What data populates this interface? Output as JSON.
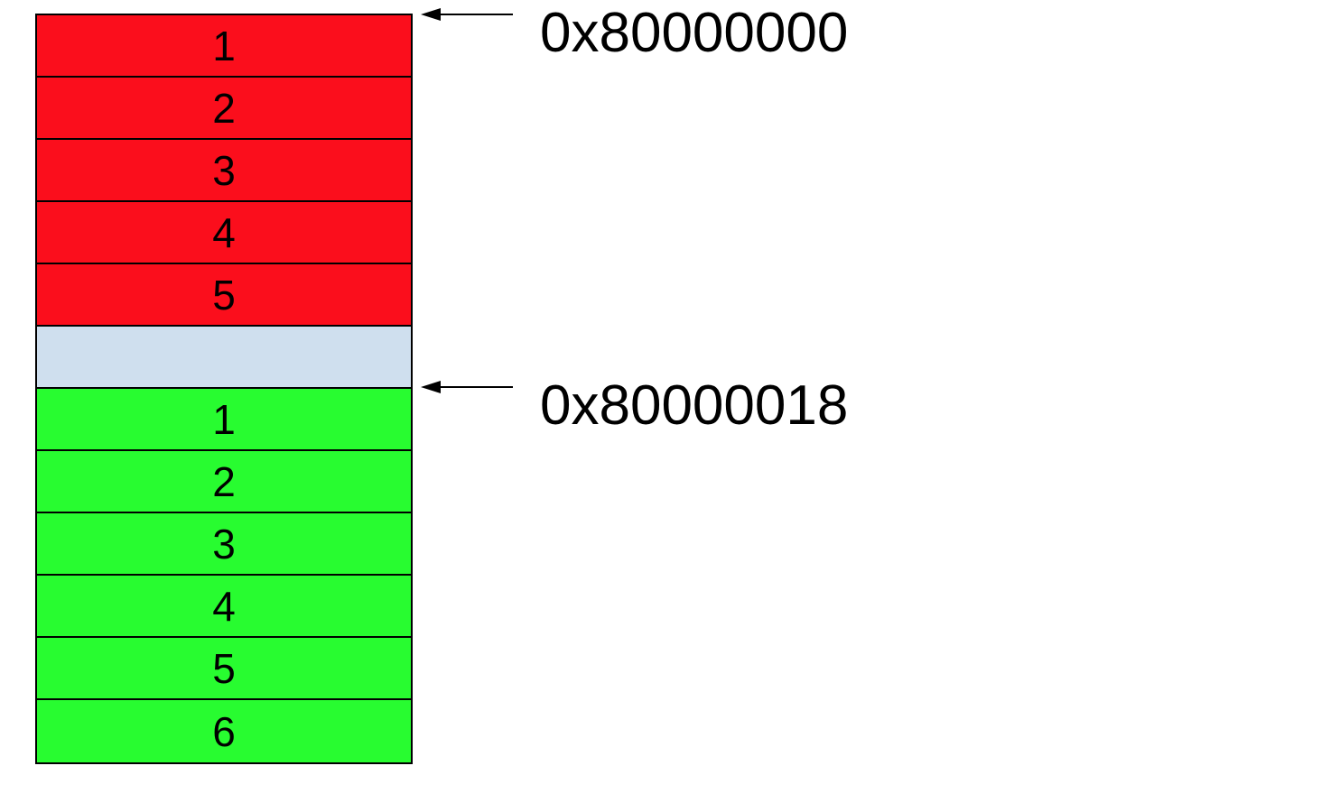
{
  "colors": {
    "block_a": "#fb0e1c",
    "padding": "#cfdfee",
    "block_b": "#28fc30",
    "outline": "#000000"
  },
  "cells": [
    {
      "label": "1",
      "kind": "block_a"
    },
    {
      "label": "2",
      "kind": "block_a"
    },
    {
      "label": "3",
      "kind": "block_a"
    },
    {
      "label": "4",
      "kind": "block_a"
    },
    {
      "label": "5",
      "kind": "block_a"
    },
    {
      "label": "",
      "kind": "padding"
    },
    {
      "label": "1",
      "kind": "block_b"
    },
    {
      "label": "2",
      "kind": "block_b"
    },
    {
      "label": "3",
      "kind": "block_b"
    },
    {
      "label": "4",
      "kind": "block_b"
    },
    {
      "label": "5",
      "kind": "block_b"
    },
    {
      "label": "6",
      "kind": "block_b"
    }
  ],
  "pointers": [
    {
      "address": "0x80000000",
      "cell_index": 0
    },
    {
      "address": "0x80000018",
      "cell_index": 6
    }
  ]
}
